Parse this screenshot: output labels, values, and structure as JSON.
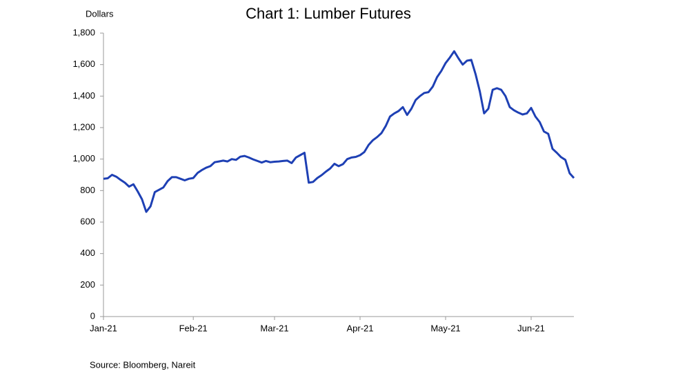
{
  "chart_data": {
    "type": "line",
    "title": "Chart 1: Lumber Futures",
    "y_label": "Dollars",
    "source": "Source: Bloomberg, Nareit",
    "categories": [
      "Jan-21",
      null,
      null,
      null,
      null,
      null,
      null,
      null,
      null,
      null,
      null,
      null,
      null,
      null,
      null,
      null,
      null,
      null,
      null,
      null,
      null,
      "Feb-21",
      null,
      null,
      null,
      null,
      null,
      null,
      null,
      null,
      null,
      null,
      null,
      null,
      null,
      null,
      null,
      null,
      null,
      null,
      "Mar-21",
      null,
      null,
      null,
      null,
      null,
      null,
      null,
      null,
      null,
      null,
      null,
      null,
      null,
      null,
      null,
      null,
      null,
      null,
      null,
      "Apr-21",
      null,
      null,
      null,
      null,
      null,
      null,
      null,
      null,
      null,
      null,
      null,
      null,
      null,
      null,
      null,
      null,
      null,
      null,
      null,
      "May-21",
      null,
      null,
      null,
      null,
      null,
      null,
      null,
      null,
      null,
      null,
      null,
      null,
      null,
      null,
      null,
      null,
      null,
      null,
      null,
      "Jun-21",
      null,
      null,
      null,
      null,
      null,
      null,
      null,
      null,
      null,
      null
    ],
    "series": [
      {
        "color": "#1e40b4",
        "values": [
          875,
          878,
          900,
          888,
          868,
          850,
          825,
          840,
          795,
          745,
          665,
          700,
          790,
          805,
          820,
          860,
          885,
          885,
          875,
          865,
          875,
          880,
          912,
          930,
          945,
          955,
          980,
          985,
          990,
          985,
          1000,
          995,
          1015,
          1020,
          1010,
          998,
          988,
          978,
          988,
          980,
          983,
          985,
          988,
          990,
          975,
          1010,
          1025,
          1040,
          850,
          855,
          880,
          898,
          920,
          940,
          970,
          955,
          968,
          1000,
          1010,
          1014,
          1025,
          1045,
          1090,
          1120,
          1140,
          1165,
          1210,
          1270,
          1290,
          1305,
          1330,
          1280,
          1320,
          1375,
          1400,
          1420,
          1425,
          1460,
          1520,
          1560,
          1610,
          1645,
          1685,
          1640,
          1600,
          1625,
          1630,
          1540,
          1430,
          1290,
          1320,
          1440,
          1450,
          1440,
          1400,
          1330,
          1310,
          1295,
          1283,
          1290,
          1325,
          1270,
          1235,
          1175,
          1160,
          1065,
          1040,
          1012,
          995,
          910,
          880
        ]
      }
    ],
    "ylim": [
      0,
      1800
    ],
    "yticks": [
      0,
      200,
      400,
      600,
      800,
      {
        "value": 1000,
        "label": "1,000"
      },
      {
        "value": 1200,
        "label": "1,200"
      },
      {
        "value": 1400,
        "label": "1,400"
      },
      {
        "value": 1600,
        "label": "1,600"
      },
      {
        "value": 1800,
        "label": "1,800"
      }
    ]
  }
}
